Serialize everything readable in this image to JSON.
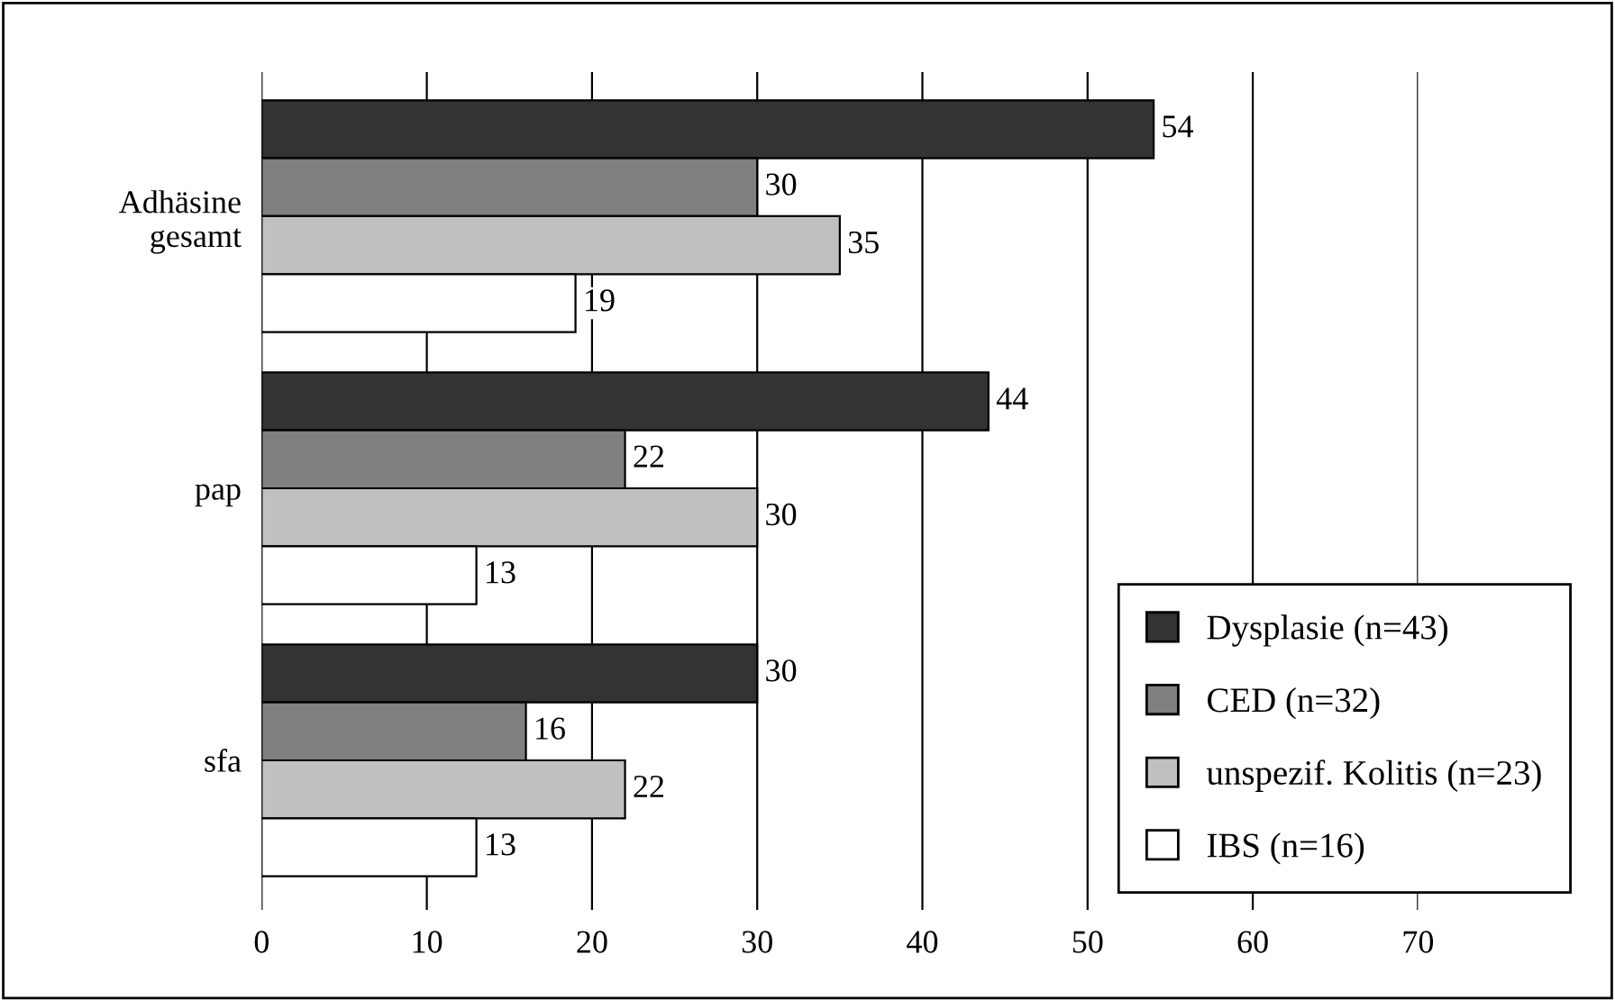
{
  "chart_data": {
    "type": "bar",
    "orientation": "horizontal",
    "categories": [
      "Adhäsine\ngesamt",
      "pap",
      "sfa"
    ],
    "series": [
      {
        "name": "Dysplasie (n=43)",
        "color": "#333333",
        "values": [
          54,
          44,
          30
        ]
      },
      {
        "name": "CED (n=32)",
        "color": "#808080",
        "values": [
          30,
          22,
          16
        ]
      },
      {
        "name": "unspezif. Kolitis (n=23)",
        "color": "#c0c0c0",
        "values": [
          35,
          30,
          22
        ]
      },
      {
        "name": "IBS (n=16)",
        "color": "#ffffff",
        "values": [
          19,
          13,
          13
        ]
      }
    ],
    "xlim": [
      0,
      70
    ],
    "xticks": [
      0,
      10,
      20,
      30,
      40,
      50,
      60,
      70
    ],
    "grid": "x",
    "legend": "bottom right",
    "data_labels": true
  }
}
